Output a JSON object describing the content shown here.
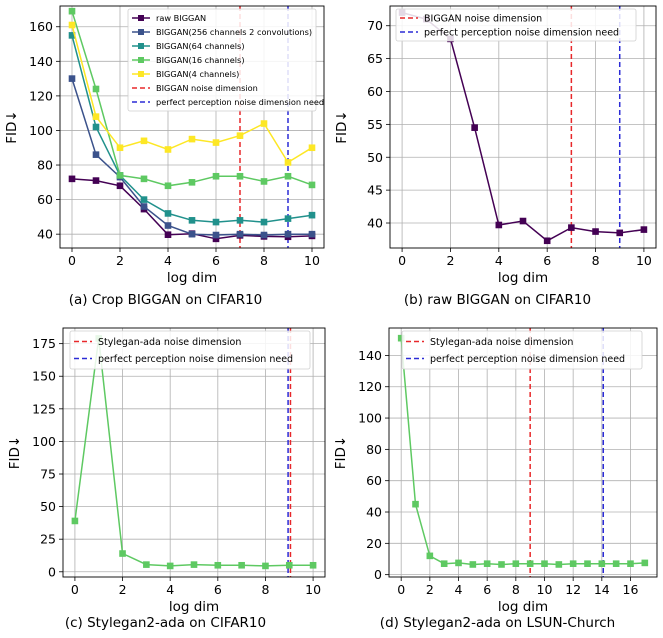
{
  "figure": {
    "captions": [
      "(a) Crop BIGGAN on CIFAR10",
      "(b) raw BIGGAN on CIFAR10",
      "(c) Stylegan2-ada on CIFAR10",
      "(d) Stylegan2-ada on LSUN-Church"
    ]
  },
  "chart_data": [
    {
      "type": "line",
      "title": "",
      "caption": "(a) Crop BIGGAN on CIFAR10",
      "xlabel": "log dim",
      "ylabel": "FID↓",
      "xlim": [
        -0.5,
        10.5
      ],
      "ylim": [
        32,
        172
      ],
      "xticks": [
        0,
        2,
        4,
        6,
        8,
        10
      ],
      "yticks": [
        40,
        60,
        80,
        100,
        120,
        140,
        160
      ],
      "grid": true,
      "legend": "top",
      "x": [
        0,
        1,
        2,
        3,
        4,
        5,
        6,
        7,
        8,
        9,
        10
      ],
      "series": [
        {
          "name": "raw BIGGAN",
          "color": "#440154",
          "values": [
            72,
            71,
            68,
            54.5,
            39.7,
            40.3,
            37.3,
            39.3,
            38.7,
            38.5,
            39
          ]
        },
        {
          "name": "BIGGAN(256 channels 2 convolutions)",
          "color": "#3b528b",
          "values": [
            130,
            86,
            73,
            56,
            45,
            40,
            39.5,
            40,
            39.5,
            40,
            40
          ]
        },
        {
          "name": "BIGGAN(64 channels)",
          "color": "#21918c",
          "values": [
            155,
            102,
            74,
            60,
            52,
            48,
            47,
            48,
            47,
            49,
            51
          ]
        },
        {
          "name": "BIGGAN(16 channels)",
          "color": "#5ec962",
          "values": [
            169,
            124,
            74,
            72,
            68,
            70,
            73.5,
            73.5,
            70.5,
            73.5,
            68.5
          ]
        },
        {
          "name": "BIGGAN(4 channels)",
          "color": "#fde725",
          "values": [
            161,
            108,
            90,
            94,
            89,
            95,
            93,
            97,
            104,
            81.5,
            90
          ]
        }
      ],
      "vlines": [
        {
          "name": "BIGGAN noise dimension",
          "x": 7,
          "color": "#e8282b"
        },
        {
          "name": "perfect perception noise dimension need",
          "x": 9,
          "color": "#2b2bd6"
        }
      ]
    },
    {
      "type": "line",
      "title": "",
      "caption": "(b) raw BIGGAN on CIFAR10",
      "xlabel": "log dim",
      "ylabel": "FID↓",
      "xlim": [
        -0.5,
        10.5
      ],
      "ylim": [
        36.2,
        73.0
      ],
      "xticks": [
        0,
        2,
        4,
        6,
        8,
        10
      ],
      "yticks": [
        40,
        45,
        50,
        55,
        60,
        65,
        70
      ],
      "grid": true,
      "legend": "top-left",
      "x": [
        0,
        1,
        2,
        3,
        4,
        5,
        6,
        7,
        8,
        9,
        10
      ],
      "series": [
        {
          "name": "",
          "color": "#440154",
          "values": [
            72,
            71,
            68,
            54.5,
            39.7,
            40.3,
            37.3,
            39.3,
            38.7,
            38.5,
            39
          ]
        }
      ],
      "vlines": [
        {
          "name": "BIGGAN noise dimension",
          "x": 7,
          "color": "#e8282b"
        },
        {
          "name": "perfect perception noise dimension need",
          "x": 9,
          "color": "#2b2bd6"
        }
      ]
    },
    {
      "type": "line",
      "title": "",
      "caption": "(c) Stylegan2-ada on CIFAR10",
      "xlabel": "log dim",
      "ylabel": "FID↓",
      "xlim": [
        -0.5,
        10.5
      ],
      "ylim": [
        -4,
        187
      ],
      "xticks": [
        0,
        2,
        4,
        6,
        8,
        10
      ],
      "yticks": [
        0,
        25,
        50,
        75,
        100,
        125,
        150,
        175
      ],
      "grid": true,
      "legend": "top-left",
      "x": [
        0,
        1,
        2,
        3,
        4,
        5,
        6,
        7,
        8,
        9,
        10
      ],
      "series": [
        {
          "name": "",
          "color": "#5ec962",
          "values": [
            39,
            179,
            14,
            5.5,
            4.5,
            5.5,
            5,
            5,
            4.5,
            5,
            5
          ]
        }
      ],
      "vlines": [
        {
          "name": "Stylegan-ada noise dimension",
          "x": 9.05,
          "color": "#e8282b"
        },
        {
          "name": "perfect perception noise dimension need",
          "x": 8.95,
          "color": "#2b2bd6"
        }
      ]
    },
    {
      "type": "line",
      "title": "",
      "caption": "(d) Stylegan2-ada on LSUN-Church",
      "xlabel": "log dim",
      "ylabel": "FID↓",
      "xlim": [
        -0.85,
        17.85
      ],
      "ylim": [
        -1.5,
        157.5
      ],
      "xticks": [
        0,
        2,
        4,
        6,
        8,
        10,
        12,
        14,
        16
      ],
      "yticks": [
        0,
        20,
        40,
        60,
        80,
        100,
        120,
        140
      ],
      "grid": true,
      "legend": "top-left",
      "x": [
        0,
        1,
        2,
        3,
        4,
        5,
        6,
        7,
        8,
        9,
        10,
        11,
        12,
        13,
        14,
        15,
        16,
        17
      ],
      "series": [
        {
          "name": "",
          "color": "#5ec962",
          "values": [
            151,
            45,
            12,
            7,
            7.5,
            6.5,
            7,
            6.5,
            7,
            7,
            7,
            6.5,
            7,
            7,
            7,
            7,
            7,
            7.5
          ]
        }
      ],
      "vlines": [
        {
          "name": "Stylegan-ada noise dimension",
          "x": 9,
          "color": "#e8282b"
        },
        {
          "name": "perfect perception noise dimension need",
          "x": 14.1,
          "color": "#2b2bd6"
        }
      ]
    }
  ]
}
